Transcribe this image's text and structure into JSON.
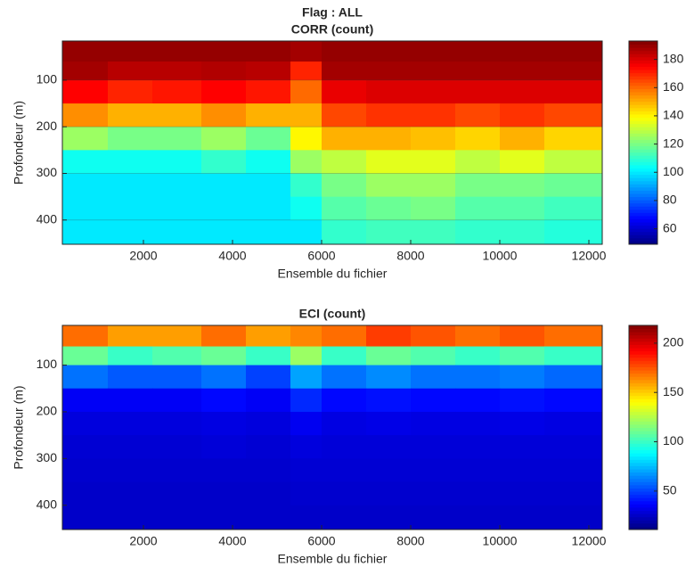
{
  "figure_title": "Flag : ALL",
  "chart_data": [
    {
      "type": "heatmap",
      "title": "CORR (count)",
      "xlabel": "Ensemble du fichier",
      "ylabel": "Profondeur (m)",
      "colormap": "jet",
      "y_reversed": true,
      "grid": true,
      "xlim": [
        180,
        12300
      ],
      "ylim": [
        16,
        452
      ],
      "xticks": [
        2000,
        4000,
        6000,
        8000,
        10000,
        12000
      ],
      "yticks": [
        100,
        200,
        300,
        400
      ],
      "clim": [
        49,
        193
      ],
      "cticks": [
        60,
        80,
        100,
        120,
        140,
        160,
        180
      ],
      "xbins": [
        180,
        1200,
        2200,
        3300,
        4300,
        5300,
        6000,
        7000,
        8000,
        9000,
        10000,
        11000,
        12300
      ],
      "ybins": [
        16,
        60,
        100,
        150,
        200,
        250,
        300,
        350,
        400,
        452
      ],
      "values": [
        [
          190,
          190,
          190,
          190,
          190,
          188,
          190,
          190,
          190,
          190,
          190,
          190
        ],
        [
          188,
          185,
          185,
          186,
          185,
          170,
          188,
          188,
          188,
          188,
          188,
          188
        ],
        [
          175,
          170,
          172,
          175,
          172,
          160,
          178,
          180,
          180,
          180,
          180,
          180
        ],
        [
          155,
          150,
          150,
          155,
          150,
          150,
          165,
          168,
          168,
          165,
          168,
          165
        ],
        [
          125,
          120,
          120,
          125,
          118,
          140,
          150,
          150,
          148,
          145,
          150,
          145
        ],
        [
          105,
          105,
          105,
          110,
          105,
          125,
          130,
          135,
          135,
          130,
          135,
          130
        ],
        [
          100,
          100,
          100,
          100,
          100,
          110,
          120,
          125,
          125,
          120,
          120,
          118
        ],
        [
          100,
          100,
          100,
          100,
          100,
          105,
          115,
          118,
          120,
          115,
          115,
          112
        ],
        [
          100,
          100,
          100,
          100,
          100,
          100,
          110,
          112,
          112,
          110,
          110,
          108
        ]
      ]
    },
    {
      "type": "heatmap",
      "title": "ECI (count)",
      "xlabel": "Ensemble du fichier",
      "ylabel": "Profondeur (m)",
      "colormap": "jet",
      "y_reversed": true,
      "grid": false,
      "xlim": [
        180,
        12300
      ],
      "ylim": [
        15,
        452
      ],
      "xticks": [
        2000,
        4000,
        6000,
        8000,
        10000,
        12000
      ],
      "yticks": [
        100,
        200,
        300,
        400
      ],
      "clim": [
        11,
        218
      ],
      "cticks": [
        50,
        100,
        150,
        200
      ],
      "xbins": [
        180,
        1200,
        2200,
        3300,
        4300,
        5300,
        6000,
        7000,
        8000,
        9000,
        10000,
        11000,
        12300
      ],
      "ybins": [
        15,
        60,
        100,
        150,
        200,
        250,
        300,
        350,
        400,
        452
      ],
      "values": [
        [
          170,
          160,
          160,
          170,
          160,
          165,
          170,
          180,
          175,
          170,
          175,
          170
        ],
        [
          110,
          100,
          105,
          110,
          100,
          120,
          100,
          110,
          105,
          100,
          105,
          100
        ],
        [
          60,
          55,
          55,
          60,
          50,
          70,
          60,
          65,
          60,
          60,
          62,
          58
        ],
        [
          35,
          35,
          35,
          38,
          35,
          45,
          38,
          40,
          38,
          38,
          40,
          38
        ],
        [
          30,
          30,
          30,
          31,
          30,
          34,
          31,
          32,
          31,
          31,
          32,
          31
        ],
        [
          28,
          28,
          28,
          29,
          28,
          30,
          29,
          29,
          29,
          29,
          29,
          29
        ],
        [
          27,
          27,
          27,
          27,
          27,
          28,
          28,
          28,
          28,
          28,
          28,
          28
        ],
        [
          26,
          26,
          26,
          26,
          26,
          27,
          27,
          27,
          27,
          27,
          27,
          27
        ],
        [
          26,
          26,
          26,
          26,
          26,
          26,
          26,
          26,
          26,
          26,
          26,
          26
        ]
      ]
    }
  ]
}
